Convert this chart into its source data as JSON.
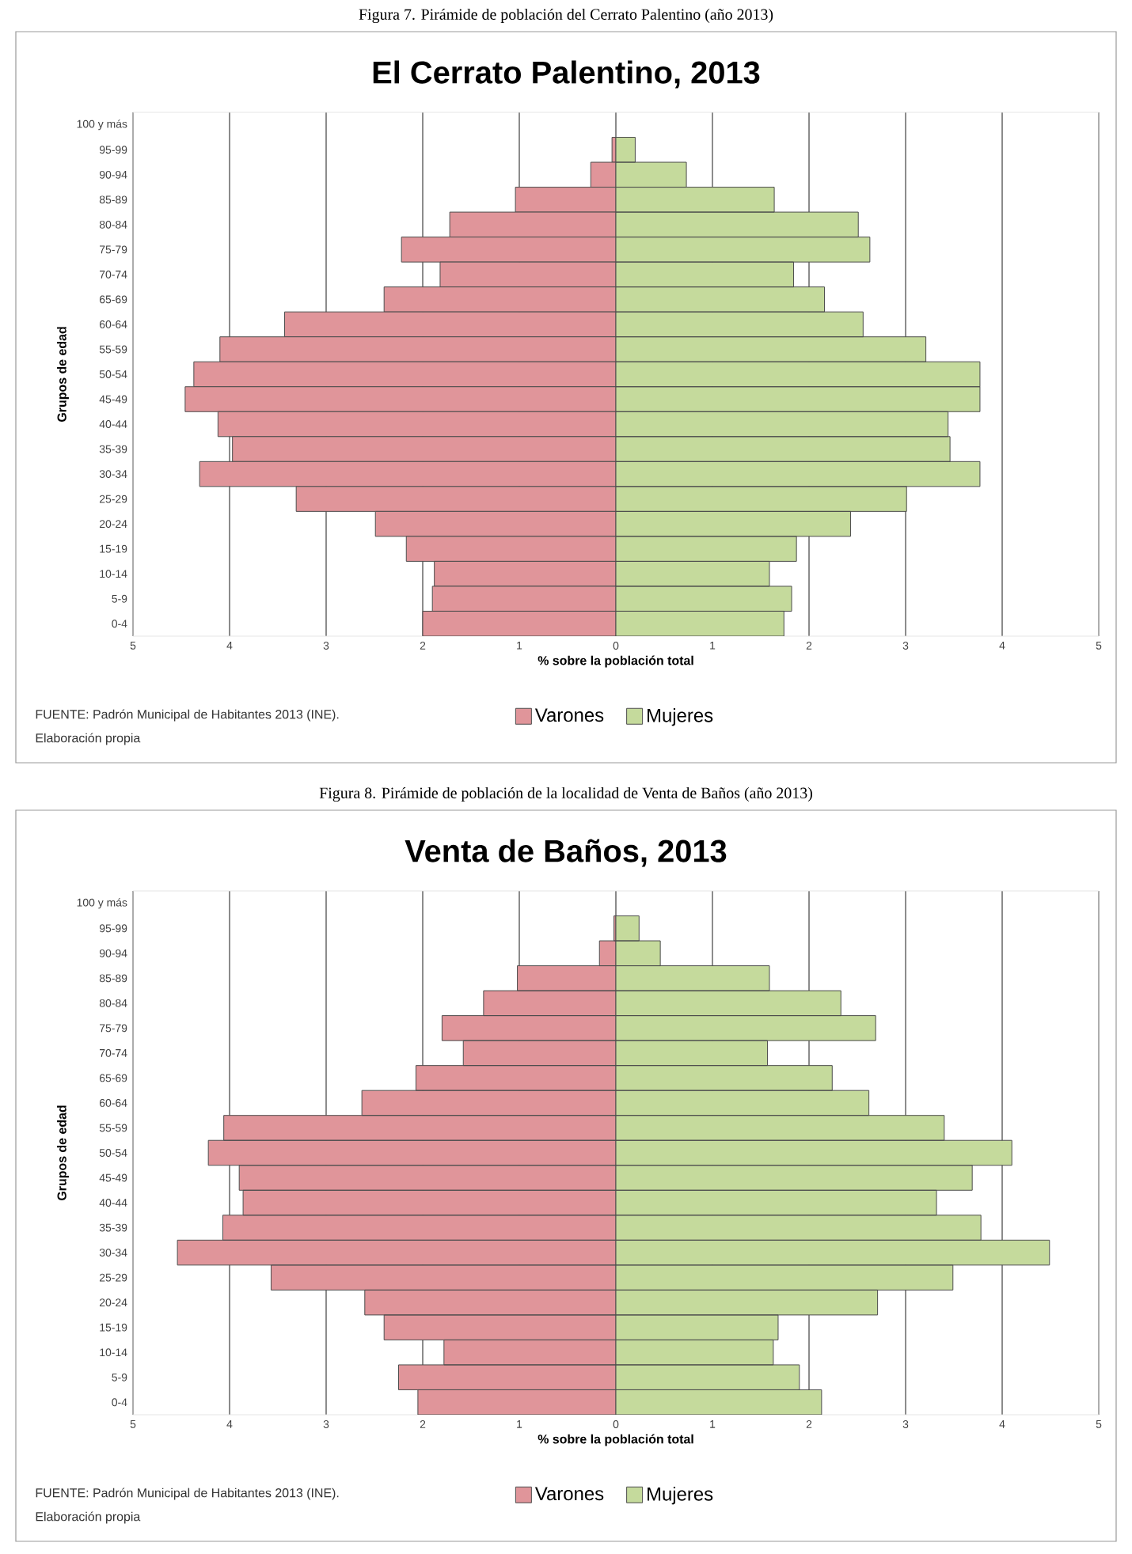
{
  "chart_data": [
    {
      "type": "bar",
      "orientation": "horizontal",
      "title": "El Cerrato Palentino, 2013",
      "xlabel": "% sobre la población total",
      "ylabel": "Grupos de edad",
      "categories": [
        "100 y más",
        "95-99",
        "90-94",
        "85-89",
        "80-84",
        "75-79",
        "70-74",
        "65-69",
        "60-64",
        "55-59",
        "50-54",
        "45-49",
        "40-44",
        "35-39",
        "30-34",
        "25-29",
        "20-24",
        "15-19",
        "10-14",
        "5-9",
        "0-4"
      ],
      "series": [
        {
          "name": "Varones",
          "color": "#e0959a",
          "values": [
            0,
            -0.04,
            -0.26,
            -1.04,
            -1.72,
            -2.22,
            -1.82,
            -2.4,
            -3.43,
            -4.1,
            -4.37,
            -4.46,
            -4.12,
            -3.97,
            -4.31,
            -3.31,
            -2.49,
            -2.17,
            -1.88,
            -1.9,
            -2.0
          ]
        },
        {
          "name": "Mujeres",
          "color": "#c5da9c",
          "values": [
            0,
            0.2,
            0.73,
            1.64,
            2.51,
            2.63,
            1.84,
            2.16,
            2.56,
            3.21,
            3.77,
            3.77,
            3.44,
            3.46,
            3.77,
            3.01,
            2.43,
            1.87,
            1.59,
            1.82,
            1.74
          ]
        }
      ],
      "xlim": [
        -5,
        5
      ],
      "xticks": [
        {
          "value": -5,
          "label": "5"
        },
        {
          "value": -4,
          "label": "4"
        },
        {
          "value": -3,
          "label": "3"
        },
        {
          "value": -2,
          "label": "2"
        },
        {
          "value": -1,
          "label": "1"
        },
        0,
        1,
        2,
        3,
        4,
        5
      ],
      "grid": "x",
      "legend": "bottom",
      "stacked": true,
      "annotations": [
        "Figura 7. Pirámide de población del Cerrato Palentino (año 2013)",
        "FUENTE: Padrón Municipal de Habitantes  2013 (INE).",
        "Elaboración propia"
      ]
    },
    {
      "type": "bar",
      "orientation": "horizontal",
      "title": "Venta de Baños, 2013",
      "xlabel": "% sobre la población total",
      "ylabel": "Grupos de edad",
      "categories": [
        "100 y más",
        "95-99",
        "90-94",
        "85-89",
        "80-84",
        "75-79",
        "70-74",
        "65-69",
        "60-64",
        "55-59",
        "50-54",
        "45-49",
        "40-44",
        "35-39",
        "30-34",
        "25-29",
        "20-24",
        "15-19",
        "10-14",
        "5-9",
        "0-4"
      ],
      "series": [
        {
          "name": "Varones",
          "color": "#e0959a",
          "values": [
            0,
            -0.02,
            -0.17,
            -1.02,
            -1.37,
            -1.8,
            -1.58,
            -2.07,
            -2.63,
            -4.06,
            -4.22,
            -3.9,
            -3.86,
            -4.07,
            -4.54,
            -3.57,
            -2.6,
            -2.4,
            -1.78,
            -2.25,
            -2.05
          ]
        },
        {
          "name": "Mujeres",
          "color": "#c5da9c",
          "values": [
            0,
            0.24,
            0.46,
            1.59,
            2.33,
            2.69,
            1.57,
            2.24,
            2.62,
            3.4,
            4.1,
            3.69,
            3.32,
            3.78,
            4.49,
            3.49,
            2.71,
            1.68,
            1.63,
            1.9,
            2.13
          ]
        }
      ],
      "xlim": [
        -5,
        5
      ],
      "xticks": [
        {
          "value": -5,
          "label": "5"
        },
        {
          "value": -4,
          "label": "4"
        },
        {
          "value": -3,
          "label": "3"
        },
        {
          "value": -2,
          "label": "2"
        },
        {
          "value": -1,
          "label": "1"
        },
        0,
        1,
        2,
        3,
        4,
        5
      ],
      "grid": "x",
      "legend": "bottom",
      "stacked": true,
      "annotations": [
        "Figura 8. Pirámide de población de la localidad de Venta de Baños (año 2013)",
        "FUENTE: Padrón Municipal de Habitantes  2013 (INE).",
        "Elaboración propia"
      ]
    }
  ]
}
